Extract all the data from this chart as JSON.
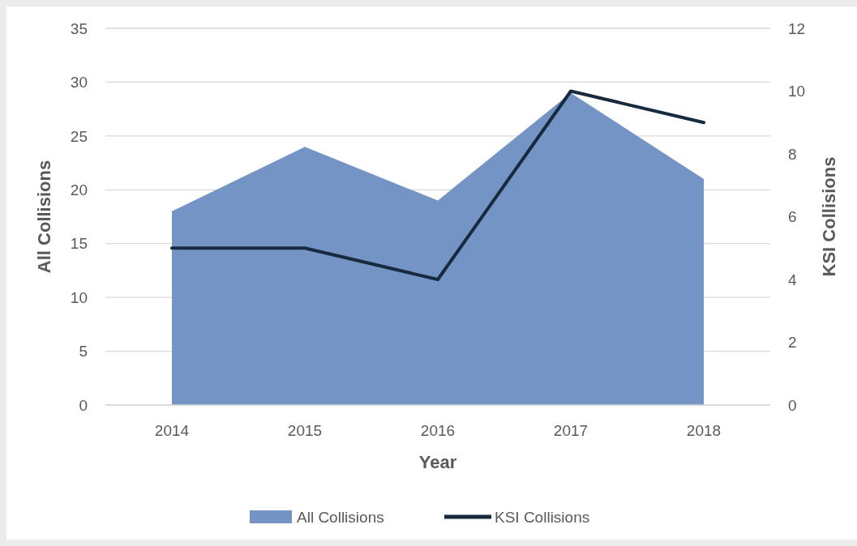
{
  "chart_data": {
    "type": "area",
    "categories": [
      "2014",
      "2015",
      "2016",
      "2017",
      "2018"
    ],
    "xlabel": "Year",
    "ylabel": "All Collisions",
    "y2label": "KSI Collisions",
    "series": [
      {
        "name": "All Collisions",
        "color": "#7594c6",
        "values": [
          18,
          24,
          19,
          29,
          21
        ]
      },
      {
        "name": "KSI Collisions",
        "type": "line",
        "axis": "y2",
        "color": "#172a3e",
        "values": [
          5,
          5,
          4,
          10,
          9
        ]
      }
    ],
    "ylim": [
      0,
      35
    ],
    "yticks": [
      0,
      5,
      10,
      15,
      20,
      25,
      30,
      35
    ],
    "y2lim": [
      0,
      12
    ],
    "y2ticks": [
      0,
      2,
      4,
      6,
      8,
      10,
      12
    ],
    "grid": "y",
    "legend": "bottom",
    "marker": "none",
    "line_style": "solid"
  }
}
